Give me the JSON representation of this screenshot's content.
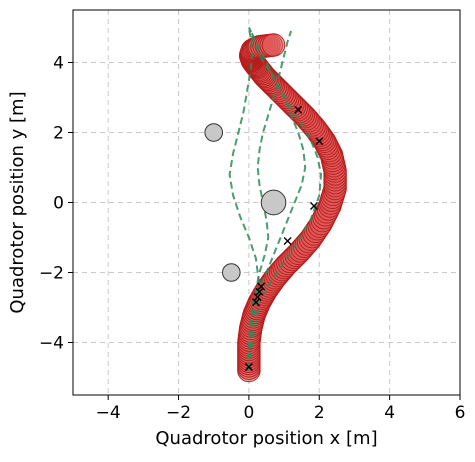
{
  "chart_data": {
    "type": "scatter",
    "title": "",
    "xlabel": "Quadrotor position x [m]",
    "ylabel": "Quadrotor position y [m]",
    "xlim": [
      -5,
      6
    ],
    "ylim": [
      -5.5,
      5.5
    ],
    "xticks": [
      -4,
      -2,
      0,
      2,
      4,
      6
    ],
    "yticks": [
      -4,
      -2,
      0,
      2,
      4
    ],
    "xtick_labels": [
      "−4",
      "−2",
      "0",
      "2",
      "4",
      "6"
    ],
    "ytick_labels": [
      "−4",
      "−2",
      "0",
      "2",
      "4"
    ],
    "grid": true,
    "colors": {
      "trajectory_fill": "#e05a5a",
      "trajectory_edge": "#b71c1c",
      "reference": "#2e8b57",
      "obstacle_fill": "#c8c8c8",
      "obstacle_edge": "#333333",
      "marker": "#000000"
    },
    "obstacles": [
      {
        "x": -1.0,
        "y": 2.0,
        "r": 0.25
      },
      {
        "x": 0.7,
        "y": 0.0,
        "r": 0.35
      },
      {
        "x": -0.5,
        "y": -2.0,
        "r": 0.25
      }
    ],
    "trajectory": {
      "x": [
        0.0,
        0.0,
        0.0,
        0.05,
        0.15,
        0.3,
        0.5,
        0.75,
        1.05,
        1.4,
        1.75,
        2.05,
        2.3,
        2.45,
        2.45,
        2.35,
        2.15,
        1.9,
        1.6,
        1.3,
        1.0,
        0.7,
        0.45,
        0.25,
        0.1,
        0.05,
        0.1,
        0.3,
        0.7
      ],
      "y": [
        -4.8,
        -4.4,
        -4.0,
        -3.6,
        -3.2,
        -2.85,
        -2.5,
        -2.15,
        -1.8,
        -1.45,
        -1.05,
        -0.6,
        -0.1,
        0.4,
        0.9,
        1.35,
        1.75,
        2.1,
        2.45,
        2.75,
        3.05,
        3.35,
        3.6,
        3.85,
        4.05,
        4.2,
        4.35,
        4.45,
        4.5
      ],
      "radius": 0.32
    },
    "reference_paths": [
      {
        "x": [
          0.0,
          0.0,
          0.1,
          0.3,
          0.6,
          1.0,
          1.4,
          1.75,
          2.0,
          2.05,
          1.95,
          1.75,
          1.45,
          1.15,
          0.85,
          0.55,
          0.3,
          0.15,
          0.05,
          0.0
        ],
        "y": [
          -4.8,
          -4.0,
          -3.3,
          -2.8,
          -2.3,
          -1.7,
          -1.1,
          -0.5,
          0.2,
          0.8,
          1.3,
          1.8,
          2.3,
          2.8,
          3.3,
          3.8,
          4.2,
          4.6,
          4.9,
          5.0
        ]
      },
      {
        "x": [
          0.0,
          0.0,
          0.05,
          0.1,
          0.3,
          0.5,
          0.7,
          0.9,
          1.1,
          1.3,
          1.5,
          1.6,
          1.55,
          1.4,
          1.2,
          1.0,
          0.8,
          0.6,
          0.4,
          0.2,
          0.05
        ],
        "y": [
          -4.8,
          -4.0,
          -3.4,
          -2.9,
          -2.4,
          -2.0,
          -1.5,
          -1.0,
          -0.5,
          0.0,
          0.5,
          1.0,
          1.5,
          2.0,
          2.5,
          3.0,
          3.4,
          3.8,
          4.2,
          4.6,
          4.9
        ]
      },
      {
        "x": [
          0.0,
          0.05,
          0.1,
          0.15,
          0.2,
          0.3,
          0.45,
          0.55,
          0.5,
          0.4,
          0.3,
          0.25,
          0.3,
          0.4,
          0.55,
          0.7,
          0.8,
          0.9,
          1.0,
          1.1,
          1.2
        ],
        "y": [
          -4.8,
          -4.0,
          -3.5,
          -3.0,
          -2.5,
          -2.0,
          -1.5,
          -1.0,
          -0.5,
          0.0,
          0.5,
          1.0,
          1.5,
          2.0,
          2.5,
          3.0,
          3.4,
          3.8,
          4.2,
          4.6,
          4.9
        ]
      },
      {
        "x": [
          0.0,
          0.1,
          0.25,
          0.3,
          0.2,
          0.0,
          -0.25,
          -0.45,
          -0.55,
          -0.45,
          -0.3,
          -0.15,
          -0.05,
          0.05,
          0.1,
          0.05,
          0.0
        ],
        "y": [
          -4.8,
          -4.0,
          -3.2,
          -2.4,
          -1.6,
          -1.0,
          -0.4,
          0.2,
          0.8,
          1.4,
          2.0,
          2.6,
          3.2,
          3.8,
          4.3,
          4.7,
          5.0
        ]
      }
    ],
    "markers": [
      {
        "x": 0.0,
        "y": -4.7
      },
      {
        "x": 0.2,
        "y": -2.85
      },
      {
        "x": 0.25,
        "y": -2.7
      },
      {
        "x": 0.3,
        "y": -2.55
      },
      {
        "x": 0.35,
        "y": -2.4
      },
      {
        "x": 1.1,
        "y": -1.1
      },
      {
        "x": 1.85,
        "y": -0.1
      },
      {
        "x": 2.0,
        "y": 1.75
      },
      {
        "x": 1.4,
        "y": 2.65
      }
    ]
  }
}
